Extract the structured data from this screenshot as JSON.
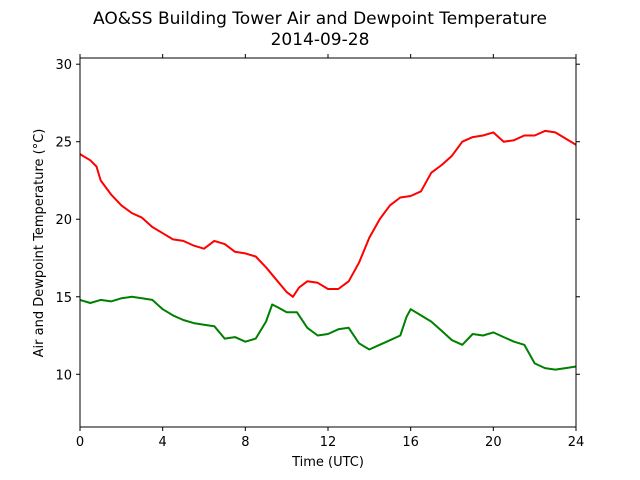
{
  "chart_data": {
    "type": "line",
    "title": "AO&SS Building Tower Air and Dewpoint Temperature",
    "subtitle": "2014-09-28",
    "xlabel": "Time (UTC)",
    "ylabel": "Air and Dewpoint Temperature (°C)",
    "xlim": [
      0,
      24
    ],
    "ylim": [
      6.6,
      30.4
    ],
    "xticks": [
      0,
      4,
      8,
      12,
      16,
      20,
      24
    ],
    "yticks": [
      10,
      15,
      20,
      25,
      30
    ],
    "grid": false,
    "legend": "none",
    "series": [
      {
        "color": "#ff0000",
        "x": [
          0,
          0.5,
          0.8,
          1.0,
          1.5,
          2.0,
          2.5,
          3.0,
          3.5,
          4.0,
          4.5,
          5.0,
          5.5,
          6.0,
          6.5,
          7.0,
          7.5,
          8.0,
          8.5,
          9.0,
          9.5,
          10.0,
          10.3,
          10.6,
          11.0,
          11.5,
          12.0,
          12.5,
          13.0,
          13.5,
          14.0,
          14.5,
          15.0,
          15.5,
          16.0,
          16.5,
          17.0,
          17.5,
          18.0,
          18.5,
          19.0,
          19.5,
          20.0,
          20.5,
          21.0,
          21.5,
          22.0,
          22.5,
          23.0,
          23.5,
          24.0
        ],
        "y": [
          24.2,
          23.8,
          23.4,
          22.5,
          21.6,
          20.9,
          20.4,
          20.1,
          19.5,
          19.1,
          18.7,
          18.6,
          18.3,
          18.1,
          18.6,
          18.4,
          17.9,
          17.8,
          17.6,
          16.9,
          16.1,
          15.3,
          15.0,
          15.6,
          16.0,
          15.9,
          15.5,
          15.5,
          16.0,
          17.2,
          18.8,
          20.0,
          20.9,
          21.4,
          21.5,
          21.8,
          23.0,
          23.5,
          24.1,
          25.0,
          25.3,
          25.4,
          25.6,
          25.0,
          25.1,
          25.4,
          25.4,
          25.7,
          25.6,
          25.2,
          24.8
        ]
      },
      {
        "color": "#008000",
        "x": [
          0,
          0.5,
          1.0,
          1.5,
          2.0,
          2.5,
          3.0,
          3.5,
          4.0,
          4.5,
          5.0,
          5.5,
          6.0,
          6.5,
          7.0,
          7.5,
          8.0,
          8.5,
          9.0,
          9.3,
          9.6,
          10.0,
          10.5,
          11.0,
          11.5,
          12.0,
          12.5,
          13.0,
          13.5,
          14.0,
          14.5,
          15.0,
          15.5,
          15.8,
          16.0,
          16.5,
          17.0,
          17.5,
          18.0,
          18.5,
          19.0,
          19.5,
          20.0,
          20.5,
          21.0,
          21.5,
          22.0,
          22.5,
          23.0,
          23.5,
          24.0
        ],
        "y": [
          14.8,
          14.6,
          14.8,
          14.7,
          14.9,
          15.0,
          14.9,
          14.8,
          14.2,
          13.8,
          13.5,
          13.3,
          13.2,
          13.1,
          12.3,
          12.4,
          12.1,
          12.3,
          13.4,
          14.5,
          14.3,
          14.0,
          14.0,
          13.0,
          12.5,
          12.6,
          12.9,
          13.0,
          12.0,
          11.6,
          11.9,
          12.2,
          12.5,
          13.7,
          14.2,
          13.8,
          13.4,
          12.8,
          12.2,
          11.9,
          12.6,
          12.5,
          12.7,
          12.4,
          12.1,
          11.9,
          10.7,
          10.4,
          10.3,
          10.4,
          10.5
        ]
      }
    ]
  }
}
